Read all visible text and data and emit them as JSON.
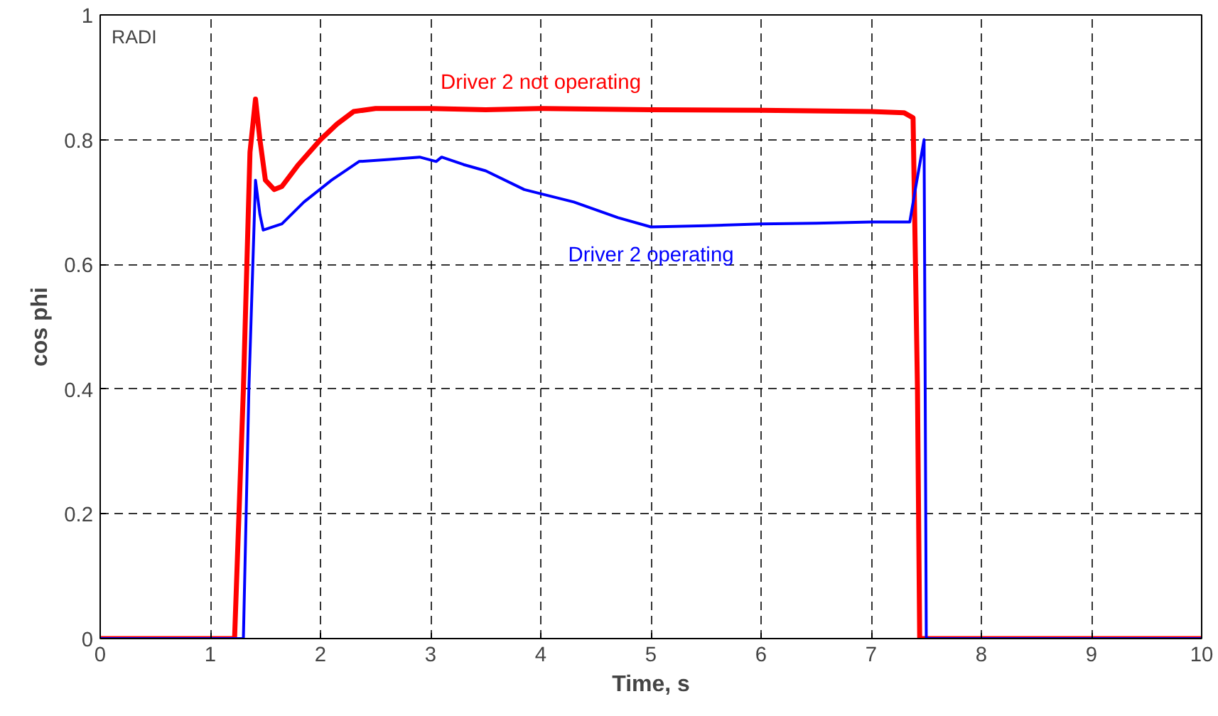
{
  "chart_data": {
    "type": "line",
    "xlabel": "Time, s",
    "ylabel": "cos phi",
    "xlim": [
      0,
      10
    ],
    "ylim": [
      0,
      1
    ],
    "xticks": [
      0,
      1,
      2,
      3,
      4,
      5,
      6,
      7,
      8,
      9,
      10
    ],
    "yticks": [
      0,
      0.2,
      0.4,
      0.6,
      0.8,
      1
    ],
    "grid": true,
    "marker": "none",
    "line_style": "solid",
    "annotations": [
      "RADI"
    ],
    "series": [
      {
        "name": "Driver 2 not operating",
        "color": "#ff0000",
        "x": [
          0,
          0.5,
          1.0,
          1.22,
          1.3,
          1.36,
          1.41,
          1.45,
          1.5,
          1.58,
          1.65,
          1.8,
          2.0,
          2.15,
          2.3,
          2.5,
          3.0,
          3.5,
          4.0,
          5.0,
          6.0,
          7.0,
          7.3,
          7.38,
          7.42,
          7.44,
          7.5,
          8,
          9,
          10
        ],
        "values": [
          0,
          0,
          0,
          0,
          0.4,
          0.78,
          0.865,
          0.8,
          0.735,
          0.72,
          0.725,
          0.76,
          0.8,
          0.825,
          0.845,
          0.85,
          0.85,
          0.848,
          0.85,
          0.848,
          0.847,
          0.845,
          0.843,
          0.835,
          0.4,
          0,
          0,
          0,
          0,
          0
        ]
      },
      {
        "name": "Driver 2 operating",
        "color": "#0000ff",
        "x": [
          0,
          0.5,
          1.0,
          1.3,
          1.35,
          1.41,
          1.45,
          1.48,
          1.65,
          1.85,
          2.1,
          2.35,
          2.6,
          2.9,
          3.05,
          3.1,
          3.3,
          3.5,
          3.85,
          4.3,
          4.7,
          5.0,
          5.5,
          6.0,
          6.5,
          7.0,
          7.35,
          7.4,
          7.46,
          7.48,
          7.5,
          8,
          9,
          10
        ],
        "values": [
          0,
          0,
          0,
          0,
          0.4,
          0.735,
          0.68,
          0.655,
          0.665,
          0.7,
          0.735,
          0.765,
          0.768,
          0.772,
          0.765,
          0.772,
          0.76,
          0.75,
          0.72,
          0.7,
          0.675,
          0.66,
          0.662,
          0.665,
          0.666,
          0.668,
          0.668,
          0.72,
          0.78,
          0.8,
          0,
          0,
          0,
          0
        ]
      }
    ]
  }
}
